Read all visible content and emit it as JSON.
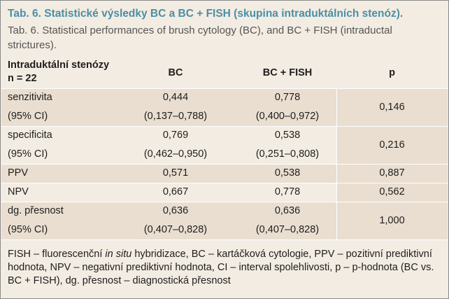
{
  "title": "Tab. 6. Statistické výsledky BC a BC + FISH (skupina intraduktálních stenóz).",
  "subtitle": "Tab. 6. Statistical performances of brush cytology (BC), and BC + FISH (intraductal strictures).",
  "header": {
    "group_line1": "Intraduktální stenózy",
    "group_line2": "n = 22",
    "col_bc": "BC",
    "col_bcfish": "BC + FISH",
    "col_p": "p"
  },
  "rows": [
    {
      "label": "senzitivita",
      "bc": "0,444",
      "bcfish": "0,778"
    },
    {
      "label": "(95% CI)",
      "bc": "(0,137–0,788)",
      "bcfish": "(0,400–0,972)"
    },
    {
      "label": "specificita",
      "bc": "0,769",
      "bcfish": "0,538"
    },
    {
      "label": "(95% CI)",
      "bc": "(0,462–0,950)",
      "bcfish": "(0,251–0,808)"
    },
    {
      "label": "PPV",
      "bc": "0,571",
      "bcfish": "0,538"
    },
    {
      "label": "NPV",
      "bc": "0,667",
      "bcfish": "0,778"
    },
    {
      "label": "dg. přesnost",
      "bc": "0,636",
      "bcfish": "0,636"
    },
    {
      "label": "(95% CI)",
      "bc": "(0,407–0,828)",
      "bcfish": "(0,407–0,828)"
    }
  ],
  "p_values": {
    "sensitivity": "0,146",
    "specificity": "0,216",
    "ppv": "0,887",
    "npv": "0,562",
    "accuracy": "1,000"
  },
  "footnote": {
    "part1": "FISH – fluorescenční ",
    "italic": "in situ",
    "part2": " hybridizace, BC – kartáčková cytologie, PPV – pozitivní prediktivní hodnota, NPV – negativní prediktivní hodnota, CI – interval spolehlivosti, p – p-hodnota (BC vs. BC + FISH), dg. přesnost – diagnostická přesnost"
  },
  "colors": {
    "title": "#4a8fa6",
    "background": "#f3ece2",
    "band": "#e9ded0"
  }
}
